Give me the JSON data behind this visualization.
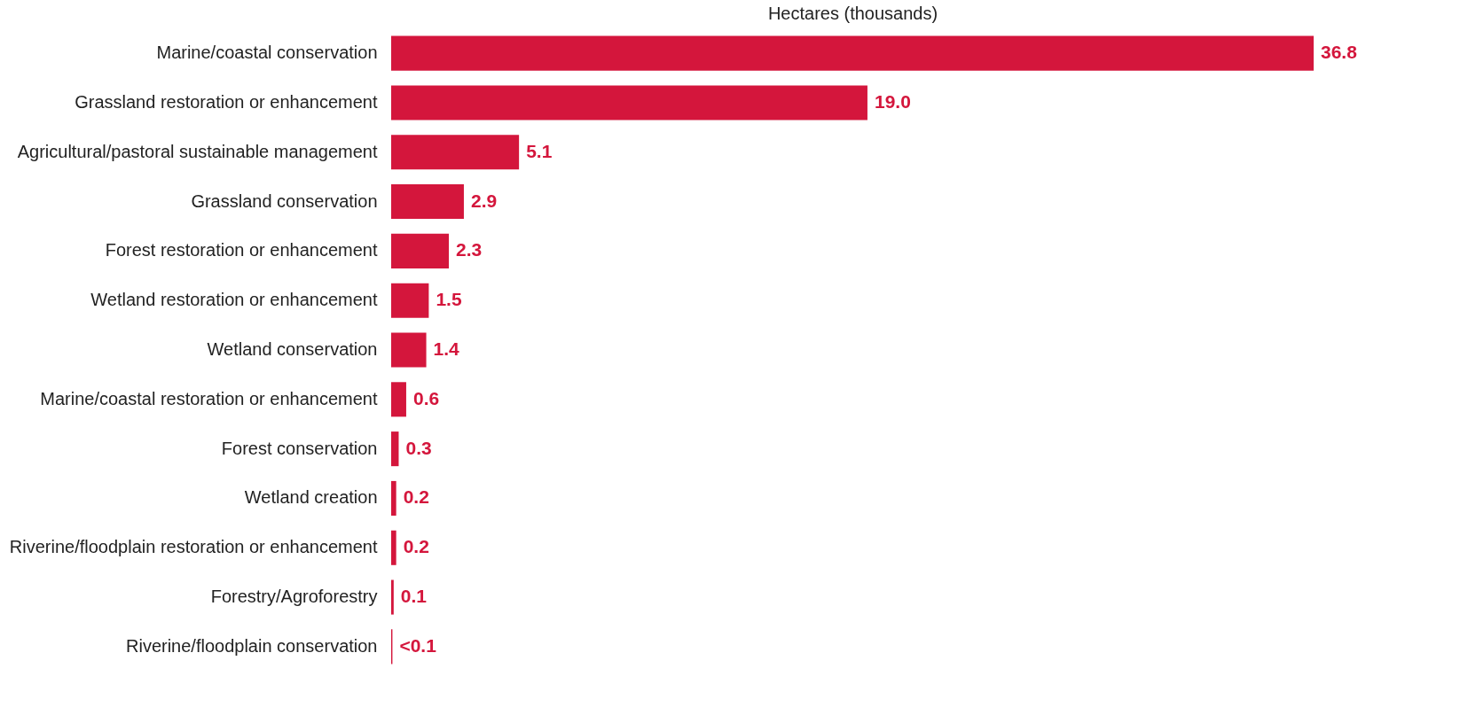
{
  "chart_data": {
    "type": "bar",
    "orientation": "horizontal",
    "xlabel": "Hectares (thousands)",
    "categories": [
      "Marine/coastal conservation",
      "Grassland restoration or enhancement",
      "Agricultural/pastoral sustainable management",
      "Grassland conservation",
      "Forest restoration or enhancement",
      "Wetland restoration or enhancement",
      "Wetland conservation",
      "Marine/coastal restoration or enhancement",
      "Forest conservation",
      "Wetland creation",
      "Riverine/floodplain restoration or enhancement",
      "Forestry/Agroforestry",
      "Riverine/floodplain conservation"
    ],
    "values": [
      36.8,
      19.0,
      5.1,
      2.9,
      2.3,
      1.5,
      1.4,
      0.6,
      0.3,
      0.2,
      0.2,
      0.1,
      0.05
    ],
    "value_labels": [
      "36.8",
      "19.0",
      "5.1",
      "2.9",
      "2.3",
      "1.5",
      "1.4",
      "0.6",
      "0.3",
      "0.2",
      "0.2",
      "0.1",
      "<0.1"
    ],
    "color": "#d4163c"
  }
}
